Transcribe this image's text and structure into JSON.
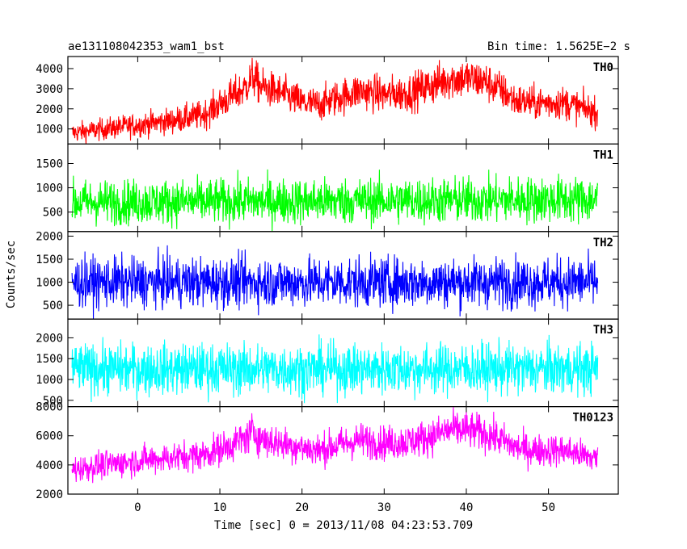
{
  "header": {
    "left_title": "ae131108042353_wam1_bst",
    "right_title": "Bin time: 1.5625E−2 s"
  },
  "axes": {
    "ylabel": "Counts/sec",
    "xlabel": "Time [sec] 0 = 2013/11/08 04:23:53.709"
  },
  "chart_data": {
    "type": "line",
    "xlim": [
      -8.5,
      58.5
    ],
    "x_ticks": [
      0,
      10,
      20,
      30,
      40,
      50
    ],
    "x_tick_labels": [
      "0",
      "10",
      "20",
      "30",
      "40",
      "50"
    ],
    "x_range_data": [
      -8,
      56
    ],
    "series": [
      {
        "name": "TH0",
        "color": "#ff0000",
        "ylim": [
          250,
          4600
        ],
        "y_ticks": [
          1000,
          2000,
          3000,
          4000
        ],
        "y_tick_labels": [
          "1000",
          "2000",
          "3000",
          "4000"
        ],
        "x": [
          -8,
          -4,
          0,
          4,
          8,
          11,
          13,
          14,
          15,
          18,
          20,
          22,
          24,
          27,
          30,
          33,
          36,
          38,
          40,
          42,
          44,
          46,
          48,
          52,
          56
        ],
        "mean": [
          800,
          1000,
          1200,
          1400,
          1700,
          2500,
          3000,
          3600,
          3100,
          2700,
          2300,
          2200,
          2500,
          2900,
          2700,
          2800,
          3200,
          3500,
          3500,
          3400,
          3000,
          2400,
          2300,
          2300,
          1800
        ],
        "spread": [
          350,
          380,
          420,
          450,
          500,
          600,
          650,
          700,
          650,
          620,
          600,
          600,
          620,
          650,
          640,
          650,
          700,
          720,
          720,
          700,
          650,
          600,
          580,
          580,
          520
        ]
      },
      {
        "name": "TH1",
        "color": "#00ff00",
        "ylim": [
          100,
          1900
        ],
        "y_ticks": [
          500,
          1000,
          1500
        ],
        "y_tick_labels": [
          "500",
          "1000",
          "1500"
        ],
        "x": [
          -8,
          56
        ],
        "mean": [
          700,
          760
        ],
        "spread": [
          320,
          340
        ]
      },
      {
        "name": "TH2",
        "color": "#0000ff",
        "ylim": [
          200,
          2100
        ],
        "y_ticks": [
          500,
          1000,
          1500,
          2000
        ],
        "y_tick_labels": [
          "500",
          "1000",
          "1500",
          "2000"
        ],
        "x": [
          -8,
          56
        ],
        "mean": [
          1000,
          1000
        ],
        "spread": [
          380,
          380
        ]
      },
      {
        "name": "TH3",
        "color": "#00ffff",
        "ylim": [
          350,
          2450
        ],
        "y_ticks": [
          500,
          1000,
          1500,
          2000
        ],
        "y_tick_labels": [
          "500",
          "1000",
          "1500",
          "2000"
        ],
        "x": [
          -8,
          56
        ],
        "mean": [
          1250,
          1250
        ],
        "spread": [
          430,
          430
        ]
      },
      {
        "name": "TH0123",
        "color": "#ff00ff",
        "ylim": [
          2000,
          8000
        ],
        "y_ticks": [
          2000,
          4000,
          6000,
          8000
        ],
        "y_tick_labels": [
          "2000",
          "4000",
          "6000",
          "8000"
        ],
        "x": [
          -8,
          -4,
          0,
          4,
          8,
          11,
          13,
          14,
          15,
          18,
          20,
          22,
          24,
          27,
          30,
          33,
          36,
          38,
          40,
          42,
          44,
          46,
          48,
          52,
          56
        ],
        "mean": [
          3700,
          4000,
          4300,
          4500,
          4700,
          5300,
          5800,
          6300,
          5800,
          5400,
          5200,
          5000,
          5300,
          5700,
          5500,
          5600,
          6000,
          6400,
          6400,
          6200,
          5800,
          5200,
          5000,
          5000,
          4400
        ],
        "spread": [
          650,
          680,
          700,
          720,
          760,
          820,
          860,
          900,
          860,
          820,
          800,
          800,
          820,
          850,
          830,
          840,
          880,
          900,
          900,
          880,
          850,
          800,
          780,
          780,
          720
        ]
      }
    ]
  }
}
